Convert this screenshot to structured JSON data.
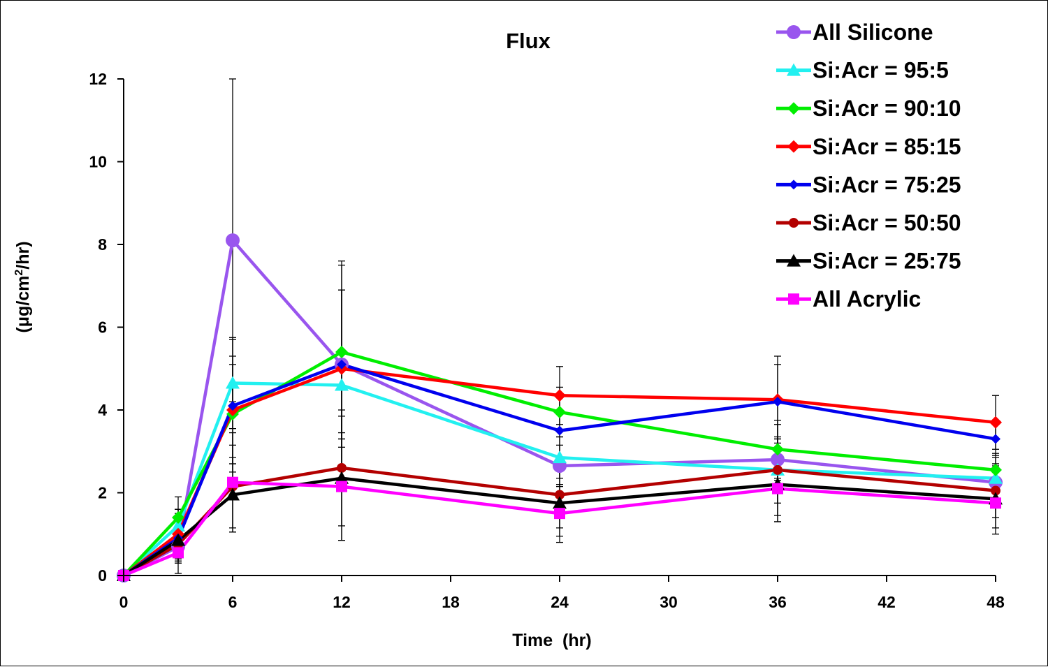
{
  "chart_data": {
    "type": "line",
    "title": "Flux",
    "xlabel": "Time  (hr)",
    "ylabel": "(μg/cm²/hr)",
    "ylabel_parts": {
      "pre": "(μg/cm",
      "sup": "2",
      "post": "/hr)"
    },
    "xlim": [
      0,
      48
    ],
    "ylim": [
      0,
      12
    ],
    "xticks": [
      0,
      6,
      12,
      18,
      24,
      30,
      36,
      42,
      48
    ],
    "yticks": [
      0,
      2,
      4,
      6,
      8,
      10,
      12
    ],
    "grid": false,
    "legend_position": "top-right",
    "error_bars": true,
    "x": [
      0,
      3,
      6,
      12,
      24,
      36,
      48
    ],
    "series": [
      {
        "name": "All Silicone",
        "color": "#9955ee",
        "marker": "circle",
        "values": [
          0,
          0.7,
          8.1,
          5.1,
          2.65,
          2.8,
          2.25
        ],
        "errors": [
          0,
          0.4,
          3.9,
          1.8,
          0.5,
          0.5,
          0.4
        ]
      },
      {
        "name": "Si:Acr = 95:5",
        "color": "#22f0f0",
        "marker": "triangle",
        "values": [
          0,
          1.2,
          4.65,
          4.6,
          2.85,
          2.55,
          2.35
        ],
        "errors": [
          0,
          0.4,
          1.1,
          2.3,
          0.5,
          0.8,
          0.5
        ]
      },
      {
        "name": "Si:Acr = 90:10",
        "color": "#00ee00",
        "marker": "diamond",
        "values": [
          0,
          1.4,
          3.9,
          5.4,
          3.95,
          3.05,
          2.55
        ],
        "errors": [
          0,
          0.5,
          1.2,
          2.1,
          0.6,
          0.7,
          0.4
        ]
      },
      {
        "name": "Si:Acr = 85:15",
        "color": "#ff0000",
        "marker": "diamond",
        "values": [
          0,
          1.0,
          4.0,
          5.0,
          4.35,
          4.25,
          3.7
        ],
        "errors": [
          0,
          0.6,
          1.3,
          1.9,
          0.7,
          1.05,
          0.65
        ]
      },
      {
        "name": "Si:Acr = 75:25",
        "color": "#0000ee",
        "marker": "diamond-small",
        "values": [
          0,
          0.9,
          4.1,
          5.1,
          3.5,
          4.2,
          3.3
        ],
        "errors": [
          0,
          0.6,
          1.6,
          2.5,
          0.8,
          0.9,
          0.4
        ]
      },
      {
        "name": "Si:Acr = 50:50",
        "color": "#b30000",
        "marker": "circle-small",
        "values": [
          0,
          0.75,
          2.15,
          2.6,
          1.95,
          2.55,
          2.05
        ],
        "errors": [
          0,
          0.4,
          1.0,
          1.4,
          0.8,
          1.1,
          0.65
        ]
      },
      {
        "name": "Si:Acr = 25:75",
        "color": "#000000",
        "marker": "triangle",
        "values": [
          0,
          0.85,
          1.95,
          2.35,
          1.75,
          2.2,
          1.85
        ],
        "errors": [
          0,
          0.5,
          0.9,
          1.5,
          0.8,
          0.9,
          0.85
        ]
      },
      {
        "name": "All Acrylic",
        "color": "#ff00ff",
        "marker": "square",
        "values": [
          0,
          0.55,
          2.25,
          2.15,
          1.5,
          2.1,
          1.75
        ],
        "errors": [
          0,
          0.5,
          1.2,
          1.3,
          0.7,
          0.8,
          0.6
        ]
      }
    ]
  }
}
